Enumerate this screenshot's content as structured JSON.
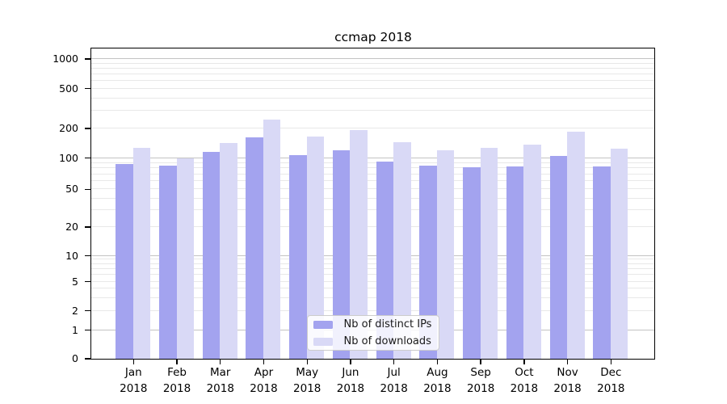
{
  "chart_data": {
    "type": "bar",
    "title": "ccmap 2018",
    "categories": [
      "Jan 2018",
      "Feb 2018",
      "Mar 2018",
      "Apr 2018",
      "May 2018",
      "Jun 2018",
      "Jul 2018",
      "Aug 2018",
      "Sep 2018",
      "Oct 2018",
      "Nov 2018",
      "Dec 2018"
    ],
    "series": [
      {
        "name": "Nb of distinct IPs",
        "color": "#a3a3ef",
        "values": [
          87,
          84,
          114,
          160,
          107,
          118,
          91,
          84,
          81,
          82,
          104,
          83
        ]
      },
      {
        "name": "Nb of downloads",
        "color": "#d9d9f6",
        "values": [
          125,
          99,
          140,
          245,
          163,
          190,
          143,
          120,
          125,
          135,
          183,
          123
        ]
      }
    ],
    "yscale": "log with zero baseline",
    "y_ticks": [
      0,
      1,
      2,
      5,
      10,
      20,
      50,
      100,
      200,
      500,
      1000
    ],
    "ylim": [
      0,
      1300
    ],
    "grid": "horizontal major and minor gridlines",
    "legend_position": "lower center"
  },
  "colors": {
    "grid_major": "#c3c3c3",
    "grid_minor": "#e8e8e8",
    "spine": "#000000",
    "text": "#000000",
    "legend_border": "#cccccc"
  }
}
